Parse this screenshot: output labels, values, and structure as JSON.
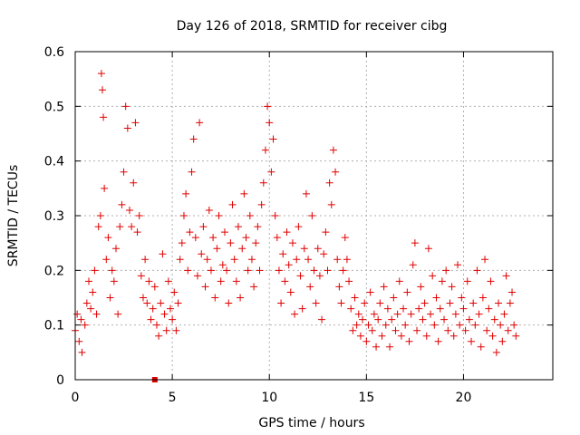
{
  "chart_data": {
    "type": "scatter",
    "title": "Day 126 of 2018, SRMTID for receiver cibg",
    "xlabel": "GPS time / hours",
    "ylabel": "SRMTID / TECUs",
    "xlim": [
      0,
      24.6
    ],
    "ylim": [
      0,
      0.6
    ],
    "x_ticks": [
      0,
      5,
      10,
      15,
      20
    ],
    "x_tick_labels": [
      "0",
      "5",
      "10",
      "15",
      "20"
    ],
    "y_ticks": [
      0,
      0.1,
      0.2,
      0.3,
      0.4,
      0.5,
      0.6
    ],
    "y_tick_labels": [
      "0",
      "0.1",
      "0.2",
      "0.3",
      "0.4",
      "0.5",
      "0.6"
    ],
    "grid": true,
    "marker": "plus",
    "color": "#e00000",
    "series": [
      {
        "name": "SRMTID",
        "points": [
          [
            0.0,
            0.09
          ],
          [
            0.1,
            0.12
          ],
          [
            0.2,
            0.07
          ],
          [
            0.3,
            0.11
          ],
          [
            0.35,
            0.05
          ],
          [
            0.5,
            0.1
          ],
          [
            0.6,
            0.14
          ],
          [
            0.7,
            0.18
          ],
          [
            0.8,
            0.13
          ],
          [
            0.9,
            0.16
          ],
          [
            1.0,
            0.2
          ],
          [
            1.1,
            0.12
          ],
          [
            1.2,
            0.28
          ],
          [
            1.3,
            0.3
          ],
          [
            1.35,
            0.56
          ],
          [
            1.4,
            0.53
          ],
          [
            1.45,
            0.48
          ],
          [
            1.5,
            0.35
          ],
          [
            1.6,
            0.22
          ],
          [
            1.7,
            0.26
          ],
          [
            1.8,
            0.15
          ],
          [
            1.9,
            0.2
          ],
          [
            2.0,
            0.18
          ],
          [
            2.1,
            0.24
          ],
          [
            2.2,
            0.12
          ],
          [
            2.3,
            0.28
          ],
          [
            2.4,
            0.32
          ],
          [
            2.5,
            0.38
          ],
          [
            2.6,
            0.5
          ],
          [
            2.7,
            0.46
          ],
          [
            2.8,
            0.31
          ],
          [
            2.9,
            0.28
          ],
          [
            3.0,
            0.36
          ],
          [
            3.1,
            0.47
          ],
          [
            3.2,
            0.27
          ],
          [
            3.3,
            0.3
          ],
          [
            3.4,
            0.19
          ],
          [
            3.5,
            0.15
          ],
          [
            3.6,
            0.22
          ],
          [
            3.7,
            0.14
          ],
          [
            3.8,
            0.18
          ],
          [
            3.9,
            0.11
          ],
          [
            4.0,
            0.13
          ],
          [
            4.1,
            0.17
          ],
          [
            4.2,
            0.1
          ],
          [
            4.3,
            0.08
          ],
          [
            4.4,
            0.14
          ],
          [
            4.5,
            0.23
          ],
          [
            4.6,
            0.12
          ],
          [
            4.7,
            0.09
          ],
          [
            4.8,
            0.18
          ],
          [
            4.9,
            0.13
          ],
          [
            5.0,
            0.11
          ],
          [
            5.1,
            0.16
          ],
          [
            5.2,
            0.09
          ],
          [
            5.3,
            0.14
          ],
          [
            5.4,
            0.22
          ],
          [
            5.5,
            0.25
          ],
          [
            5.6,
            0.3
          ],
          [
            5.7,
            0.34
          ],
          [
            5.8,
            0.2
          ],
          [
            5.9,
            0.27
          ],
          [
            6.0,
            0.38
          ],
          [
            6.1,
            0.44
          ],
          [
            6.2,
            0.26
          ],
          [
            6.3,
            0.19
          ],
          [
            6.4,
            0.47
          ],
          [
            6.5,
            0.23
          ],
          [
            6.6,
            0.28
          ],
          [
            6.7,
            0.17
          ],
          [
            6.8,
            0.22
          ],
          [
            6.9,
            0.31
          ],
          [
            7.0,
            0.2
          ],
          [
            7.1,
            0.26
          ],
          [
            7.2,
            0.15
          ],
          [
            7.3,
            0.24
          ],
          [
            7.4,
            0.3
          ],
          [
            7.5,
            0.18
          ],
          [
            7.6,
            0.21
          ],
          [
            7.7,
            0.27
          ],
          [
            7.8,
            0.2
          ],
          [
            7.9,
            0.14
          ],
          [
            8.0,
            0.25
          ],
          [
            8.1,
            0.32
          ],
          [
            8.2,
            0.22
          ],
          [
            8.3,
            0.18
          ],
          [
            8.4,
            0.28
          ],
          [
            8.5,
            0.15
          ],
          [
            8.6,
            0.24
          ],
          [
            8.7,
            0.34
          ],
          [
            8.8,
            0.26
          ],
          [
            8.9,
            0.2
          ],
          [
            9.0,
            0.3
          ],
          [
            9.1,
            0.22
          ],
          [
            9.2,
            0.17
          ],
          [
            9.3,
            0.25
          ],
          [
            9.4,
            0.28
          ],
          [
            9.5,
            0.2
          ],
          [
            9.6,
            0.32
          ],
          [
            9.7,
            0.36
          ],
          [
            9.8,
            0.42
          ],
          [
            9.9,
            0.5
          ],
          [
            10.0,
            0.47
          ],
          [
            10.1,
            0.38
          ],
          [
            10.2,
            0.44
          ],
          [
            10.3,
            0.3
          ],
          [
            10.4,
            0.26
          ],
          [
            10.5,
            0.2
          ],
          [
            10.6,
            0.14
          ],
          [
            10.7,
            0.23
          ],
          [
            10.8,
            0.18
          ],
          [
            10.9,
            0.27
          ],
          [
            11.0,
            0.21
          ],
          [
            11.1,
            0.16
          ],
          [
            11.2,
            0.25
          ],
          [
            11.3,
            0.12
          ],
          [
            11.4,
            0.22
          ],
          [
            11.5,
            0.28
          ],
          [
            11.6,
            0.19
          ],
          [
            11.7,
            0.13
          ],
          [
            11.8,
            0.24
          ],
          [
            11.9,
            0.34
          ],
          [
            12.0,
            0.22
          ],
          [
            12.1,
            0.17
          ],
          [
            12.2,
            0.3
          ],
          [
            12.3,
            0.2
          ],
          [
            12.4,
            0.14
          ],
          [
            12.5,
            0.24
          ],
          [
            12.6,
            0.19
          ],
          [
            12.7,
            0.11
          ],
          [
            12.8,
            0.23
          ],
          [
            12.9,
            0.27
          ],
          [
            13.0,
            0.2
          ],
          [
            13.1,
            0.36
          ],
          [
            13.2,
            0.32
          ],
          [
            13.3,
            0.42
          ],
          [
            13.4,
            0.38
          ],
          [
            13.5,
            0.22
          ],
          [
            13.6,
            0.17
          ],
          [
            13.7,
            0.14
          ],
          [
            13.8,
            0.2
          ],
          [
            13.9,
            0.26
          ],
          [
            14.0,
            0.22
          ],
          [
            14.1,
            0.18
          ],
          [
            14.2,
            0.13
          ],
          [
            14.3,
            0.09
          ],
          [
            14.4,
            0.15
          ],
          [
            14.5,
            0.1
          ],
          [
            14.6,
            0.12
          ],
          [
            14.7,
            0.08
          ],
          [
            14.8,
            0.11
          ],
          [
            14.9,
            0.14
          ],
          [
            15.0,
            0.07
          ],
          [
            15.1,
            0.1
          ],
          [
            15.2,
            0.16
          ],
          [
            15.3,
            0.09
          ],
          [
            15.4,
            0.12
          ],
          [
            15.5,
            0.06
          ],
          [
            15.6,
            0.11
          ],
          [
            15.7,
            0.14
          ],
          [
            15.8,
            0.08
          ],
          [
            15.9,
            0.17
          ],
          [
            16.0,
            0.1
          ],
          [
            16.1,
            0.13
          ],
          [
            16.2,
            0.06
          ],
          [
            16.3,
            0.11
          ],
          [
            16.4,
            0.15
          ],
          [
            16.5,
            0.09
          ],
          [
            16.6,
            0.12
          ],
          [
            16.7,
            0.18
          ],
          [
            16.8,
            0.08
          ],
          [
            16.9,
            0.13
          ],
          [
            17.0,
            0.1
          ],
          [
            17.1,
            0.16
          ],
          [
            17.2,
            0.07
          ],
          [
            17.3,
            0.12
          ],
          [
            17.4,
            0.21
          ],
          [
            17.5,
            0.25
          ],
          [
            17.6,
            0.09
          ],
          [
            17.7,
            0.13
          ],
          [
            17.8,
            0.17
          ],
          [
            17.9,
            0.11
          ],
          [
            18.0,
            0.14
          ],
          [
            18.1,
            0.08
          ],
          [
            18.2,
            0.24
          ],
          [
            18.3,
            0.12
          ],
          [
            18.4,
            0.19
          ],
          [
            18.5,
            0.1
          ],
          [
            18.6,
            0.15
          ],
          [
            18.7,
            0.07
          ],
          [
            18.8,
            0.13
          ],
          [
            18.9,
            0.18
          ],
          [
            19.0,
            0.11
          ],
          [
            19.1,
            0.2
          ],
          [
            19.2,
            0.09
          ],
          [
            19.3,
            0.14
          ],
          [
            19.4,
            0.17
          ],
          [
            19.5,
            0.08
          ],
          [
            19.6,
            0.12
          ],
          [
            19.7,
            0.21
          ],
          [
            19.8,
            0.1
          ],
          [
            19.9,
            0.15
          ],
          [
            20.0,
            0.13
          ],
          [
            20.1,
            0.09
          ],
          [
            20.2,
            0.18
          ],
          [
            20.3,
            0.11
          ],
          [
            20.4,
            0.07
          ],
          [
            20.5,
            0.14
          ],
          [
            20.6,
            0.1
          ],
          [
            20.7,
            0.2
          ],
          [
            20.8,
            0.12
          ],
          [
            20.9,
            0.06
          ],
          [
            21.0,
            0.15
          ],
          [
            21.1,
            0.22
          ],
          [
            21.2,
            0.09
          ],
          [
            21.3,
            0.13
          ],
          [
            21.4,
            0.18
          ],
          [
            21.5,
            0.08
          ],
          [
            21.6,
            0.11
          ],
          [
            21.7,
            0.05
          ],
          [
            21.8,
            0.14
          ],
          [
            21.9,
            0.1
          ],
          [
            22.0,
            0.07
          ],
          [
            22.1,
            0.12
          ],
          [
            22.2,
            0.19
          ],
          [
            22.3,
            0.09
          ],
          [
            22.4,
            0.14
          ],
          [
            22.5,
            0.16
          ],
          [
            22.6,
            0.1
          ],
          [
            22.7,
            0.08
          ]
        ]
      },
      {
        "name": "outlier",
        "marker": "square",
        "points": [
          [
            4.1,
            0.0
          ]
        ]
      }
    ]
  }
}
